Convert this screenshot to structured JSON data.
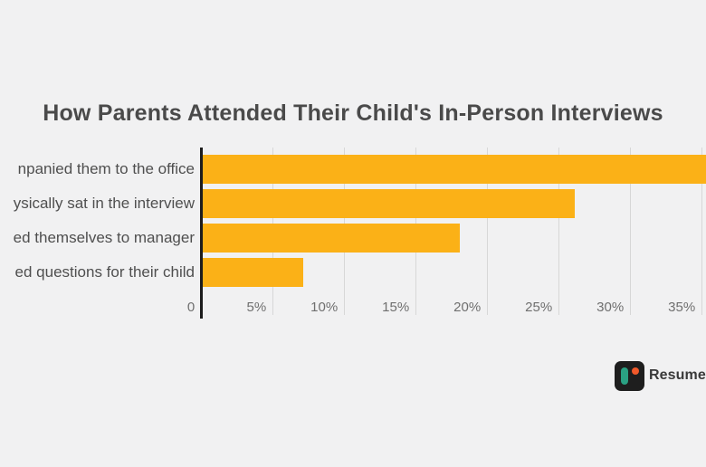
{
  "title": "How Parents Attended Their Child's In-Person Interviews",
  "chart_data": {
    "type": "bar",
    "orientation": "horizontal",
    "title": "How Parents Attended Their Child's In-Person Interviews",
    "categories_visible_labels": [
      "npanied them to the office",
      "ysically sat in the interview",
      "ed themselves to manager",
      "ed questions for their child"
    ],
    "values_pct": [
      40,
      26,
      18,
      7
    ],
    "first_bar_clipped_at_right_edge": true,
    "visible_extent_pct_of_first_bar": 39.5,
    "x_tick_labels": [
      "0",
      "5%",
      "10%",
      "15%",
      "20%",
      "25%",
      "30%",
      "35%"
    ],
    "x_tick_step_pct": 5,
    "xlim": [
      0,
      40
    ],
    "grid": true,
    "legend": false,
    "xlabel": "",
    "ylabel": ""
  },
  "colors": {
    "background": "#f1f1f2",
    "bar": "#FBB117",
    "title_text": "#4a4a4a",
    "category_text": "#4f4f4f",
    "tick_text": "#6f6f6f",
    "gridline": "#d7d7d7",
    "axis": "#1c1c1c",
    "logo_bg": "#1e1e1e",
    "logo_teal": "#2aa183",
    "logo_orange": "#f1592a",
    "logo_text": "#3a3a3a"
  },
  "logo": {
    "visible_text": "ResumeT",
    "icon": "resumetemplates-mark"
  }
}
